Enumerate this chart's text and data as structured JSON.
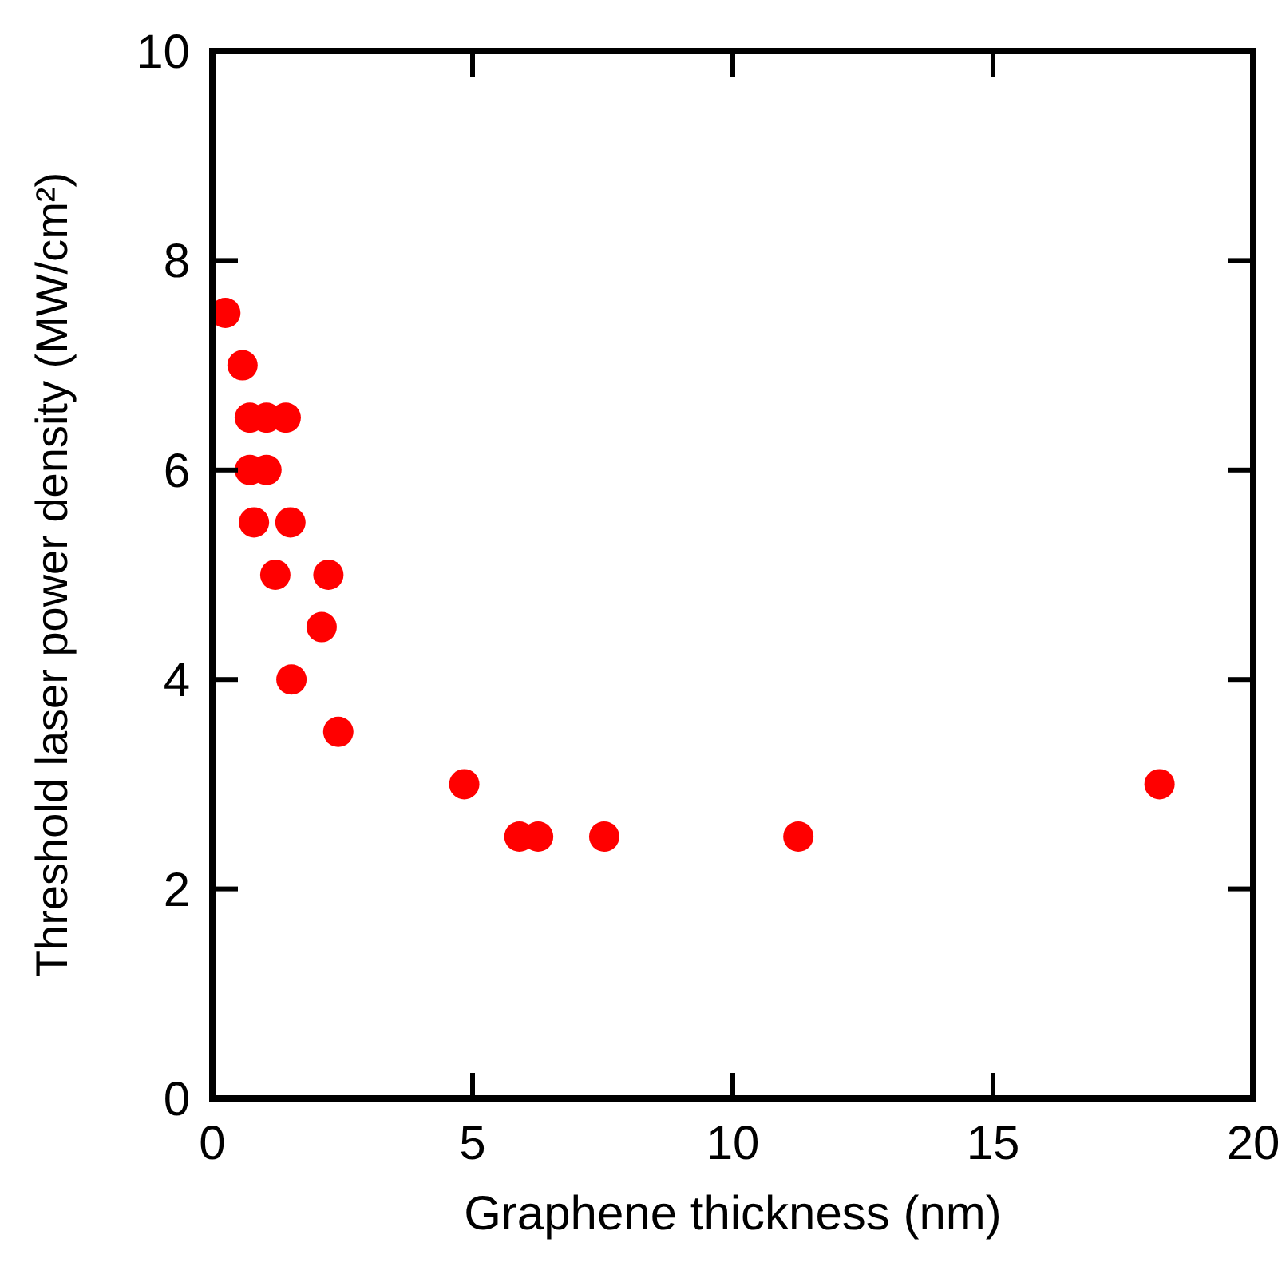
{
  "chart_data": {
    "type": "scatter",
    "xlabel": "Graphene thickness (nm)",
    "ylabel": "Threshold laser power density (MW/cm²)",
    "x": [
      0.25,
      0.58,
      0.72,
      1.04,
      1.41,
      0.72,
      1.04,
      0.8,
      1.5,
      1.21,
      2.23,
      2.1,
      1.52,
      2.42,
      4.84,
      5.9,
      6.26,
      7.53,
      11.26,
      18.2
    ],
    "values": [
      7.5,
      7.0,
      6.5,
      6.5,
      6.5,
      6.0,
      6.0,
      5.5,
      5.5,
      5.0,
      5.0,
      4.5,
      4.0,
      3.5,
      3.0,
      2.5,
      2.5,
      2.5,
      2.5,
      3.0
    ],
    "color": "#ff0000",
    "marker": "circle",
    "xlim": [
      0,
      20
    ],
    "xticks": [
      0,
      5,
      10,
      15,
      20
    ],
    "ylim": [
      0,
      10
    ],
    "yticks": [
      0,
      2,
      4,
      6,
      8,
      10
    ],
    "grid": false
  }
}
